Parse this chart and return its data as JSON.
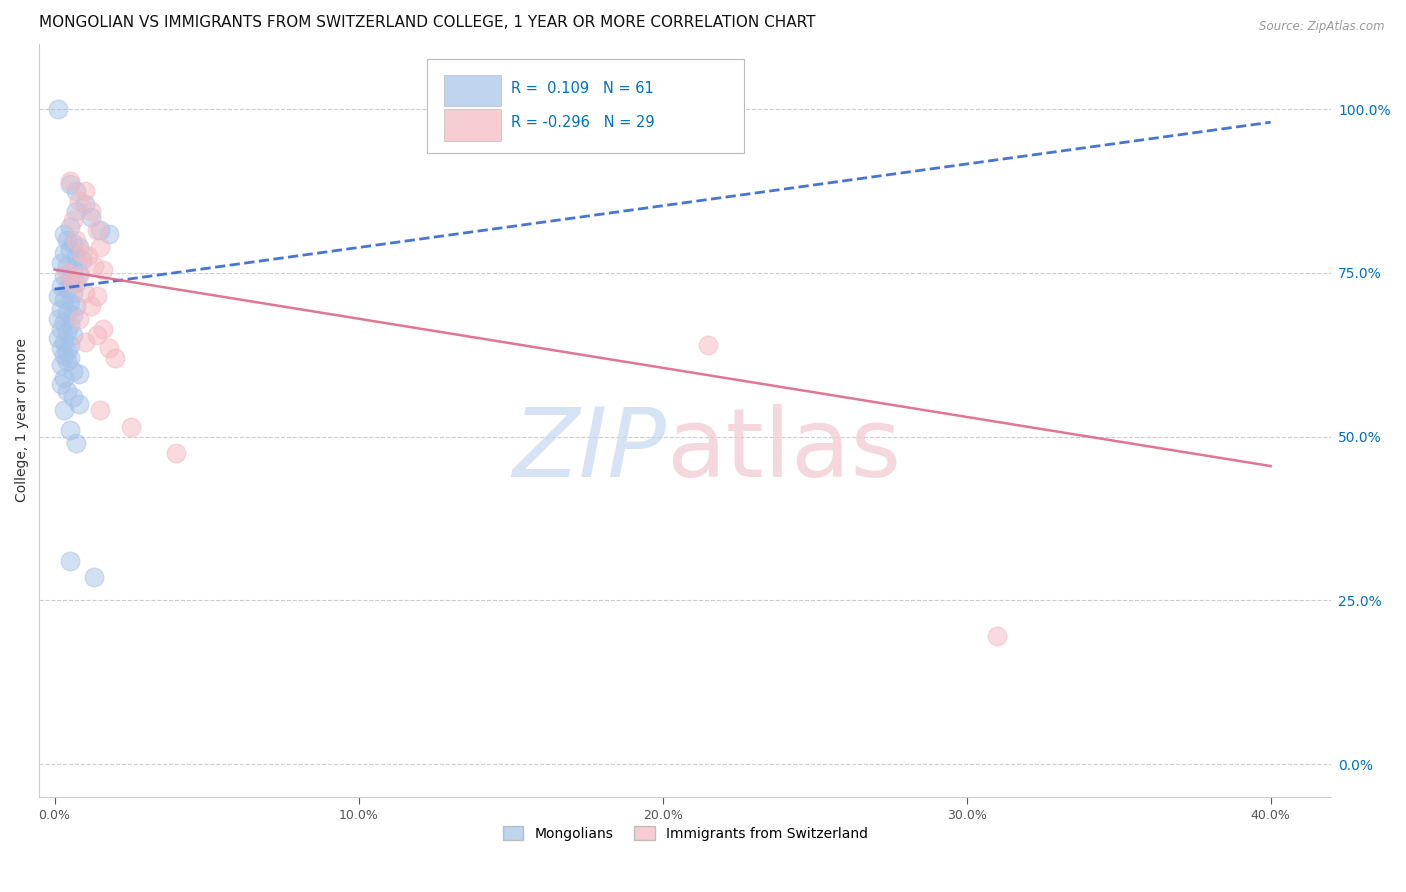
{
  "title": "MONGOLIAN VS IMMIGRANTS FROM SWITZERLAND COLLEGE, 1 YEAR OR MORE CORRELATION CHART",
  "source": "Source: ZipAtlas.com",
  "ylabel": "College, 1 year or more",
  "ylabel_ticks": [
    "0.0%",
    "25.0%",
    "50.0%",
    "75.0%",
    "100.0%"
  ],
  "ylabel_tick_vals": [
    0.0,
    0.25,
    0.5,
    0.75,
    1.0
  ],
  "xlabel_ticks": [
    "0.0%",
    "10.0%",
    "20.0%",
    "30.0%",
    "40.0%"
  ],
  "xlabel_tick_vals": [
    0.0,
    0.1,
    0.2,
    0.3,
    0.4
  ],
  "xlim": [
    -0.005,
    0.42
  ],
  "ylim": [
    -0.05,
    1.1
  ],
  "mongolian_color": "#a4c2e8",
  "swiss_color": "#f4b8c1",
  "mongolian_line_color": "#3366cc",
  "swiss_line_color": "#dd6688",
  "mongolian_R": 0.109,
  "mongolian_N": 61,
  "swiss_R": -0.296,
  "swiss_N": 29,
  "mon_line_x": [
    0.0,
    0.4
  ],
  "mon_line_y": [
    0.725,
    0.98
  ],
  "mon_dashed_line_x": [
    0.0,
    0.4
  ],
  "mon_dashed_line_y": [
    0.725,
    0.98
  ],
  "swi_line_x": [
    0.0,
    0.4
  ],
  "swi_line_y": [
    0.755,
    0.455
  ],
  "mongolian_scatter": [
    [
      0.001,
      1.0
    ],
    [
      0.005,
      0.885
    ],
    [
      0.007,
      0.875
    ],
    [
      0.01,
      0.855
    ],
    [
      0.007,
      0.845
    ],
    [
      0.012,
      0.835
    ],
    [
      0.005,
      0.82
    ],
    [
      0.003,
      0.81
    ],
    [
      0.015,
      0.815
    ],
    [
      0.018,
      0.81
    ],
    [
      0.004,
      0.8
    ],
    [
      0.006,
      0.795
    ],
    [
      0.008,
      0.79
    ],
    [
      0.005,
      0.785
    ],
    [
      0.003,
      0.78
    ],
    [
      0.007,
      0.775
    ],
    [
      0.009,
      0.77
    ],
    [
      0.002,
      0.765
    ],
    [
      0.004,
      0.76
    ],
    [
      0.006,
      0.755
    ],
    [
      0.008,
      0.75
    ],
    [
      0.003,
      0.745
    ],
    [
      0.005,
      0.74
    ],
    [
      0.007,
      0.735
    ],
    [
      0.002,
      0.73
    ],
    [
      0.004,
      0.725
    ],
    [
      0.006,
      0.72
    ],
    [
      0.001,
      0.715
    ],
    [
      0.003,
      0.71
    ],
    [
      0.005,
      0.705
    ],
    [
      0.007,
      0.7
    ],
    [
      0.002,
      0.695
    ],
    [
      0.004,
      0.69
    ],
    [
      0.006,
      0.685
    ],
    [
      0.001,
      0.68
    ],
    [
      0.003,
      0.675
    ],
    [
      0.005,
      0.67
    ],
    [
      0.002,
      0.665
    ],
    [
      0.004,
      0.66
    ],
    [
      0.006,
      0.655
    ],
    [
      0.001,
      0.65
    ],
    [
      0.003,
      0.645
    ],
    [
      0.005,
      0.64
    ],
    [
      0.002,
      0.635
    ],
    [
      0.004,
      0.63
    ],
    [
      0.003,
      0.625
    ],
    [
      0.005,
      0.62
    ],
    [
      0.004,
      0.615
    ],
    [
      0.002,
      0.61
    ],
    [
      0.006,
      0.6
    ],
    [
      0.008,
      0.595
    ],
    [
      0.003,
      0.59
    ],
    [
      0.002,
      0.58
    ],
    [
      0.004,
      0.57
    ],
    [
      0.006,
      0.56
    ],
    [
      0.008,
      0.55
    ],
    [
      0.003,
      0.54
    ],
    [
      0.005,
      0.51
    ],
    [
      0.007,
      0.49
    ],
    [
      0.005,
      0.31
    ],
    [
      0.013,
      0.285
    ]
  ],
  "swiss_scatter": [
    [
      0.005,
      0.89
    ],
    [
      0.01,
      0.875
    ],
    [
      0.008,
      0.86
    ],
    [
      0.012,
      0.845
    ],
    [
      0.006,
      0.83
    ],
    [
      0.014,
      0.815
    ],
    [
      0.007,
      0.8
    ],
    [
      0.015,
      0.79
    ],
    [
      0.009,
      0.78
    ],
    [
      0.011,
      0.775
    ],
    [
      0.013,
      0.76
    ],
    [
      0.016,
      0.755
    ],
    [
      0.004,
      0.75
    ],
    [
      0.008,
      0.745
    ],
    [
      0.006,
      0.735
    ],
    [
      0.01,
      0.72
    ],
    [
      0.014,
      0.715
    ],
    [
      0.012,
      0.7
    ],
    [
      0.008,
      0.68
    ],
    [
      0.016,
      0.665
    ],
    [
      0.014,
      0.655
    ],
    [
      0.01,
      0.645
    ],
    [
      0.018,
      0.635
    ],
    [
      0.02,
      0.62
    ],
    [
      0.015,
      0.54
    ],
    [
      0.025,
      0.515
    ],
    [
      0.04,
      0.475
    ],
    [
      0.215,
      0.64
    ],
    [
      0.31,
      0.195
    ]
  ],
  "background_color": "#ffffff",
  "grid_color": "#cccccc",
  "title_fontsize": 11,
  "axis_label_fontsize": 10,
  "tick_fontsize": 9,
  "legend_R_color": "#0070c0",
  "legend_label1": "Mongolians",
  "legend_label2": "Immigrants from Switzerland"
}
